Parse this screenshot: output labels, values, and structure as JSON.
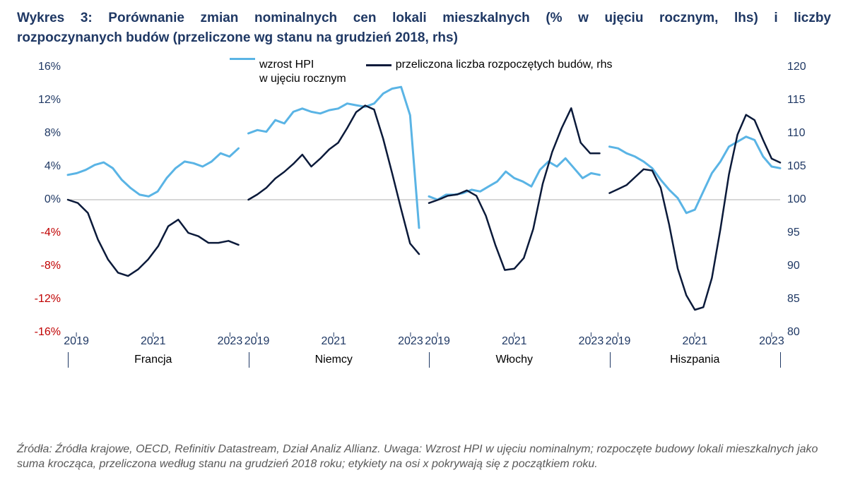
{
  "title_line1": "Wykres 3: Porównanie zmian nominalnych cen lokali mieszkalnych (% w ujęciu rocznym, lhs) i liczby",
  "title_line2": "rozpoczynanych budów (przeliczone wg stanu na grudzień 2018, rhs)",
  "legend": {
    "hpi_line1": "wzrost HPI",
    "hpi_line2": "w ujęciu rocznym",
    "starts": "przeliczona liczba rozpoczętych budów, rhs"
  },
  "colors": {
    "hpi": "#5ab4e5",
    "starts": "#0b1a3a",
    "axis_text": "#1f3864",
    "neg_text": "#c00000",
    "zero_line": "#bfbfbf",
    "sep": "#1f3864",
    "tick": "#1f3864"
  },
  "chart": {
    "type": "line-panels",
    "left_axis": {
      "min": -16,
      "max": 16,
      "step": 4,
      "suffix": "%",
      "labels": [
        "16%",
        "12%",
        "8%",
        "4%",
        "0%",
        "-4%",
        "-8%",
        "-12%",
        "-16%"
      ]
    },
    "right_axis": {
      "min": 80,
      "max": 120,
      "step": 5,
      "labels": [
        "120",
        "115",
        "110",
        "105",
        "100",
        "95",
        "90",
        "85",
        "80"
      ]
    },
    "line_width_hpi": 3,
    "line_width_starts": 2.5,
    "panels": [
      {
        "country": "Francja",
        "x_ticks": [
          "2019",
          "2021",
          "2023"
        ],
        "hpi": [
          3.0,
          3.2,
          3.6,
          4.2,
          4.5,
          3.8,
          2.4,
          1.4,
          0.6,
          0.4,
          1.0,
          2.6,
          3.8,
          4.6,
          4.4,
          4.0,
          4.6,
          5.6,
          5.2,
          6.2
        ],
        "starts": [
          100,
          99.5,
          98,
          94,
          91,
          89,
          88.5,
          89.5,
          91,
          93,
          96,
          97,
          95,
          94.5,
          93.5,
          93.5,
          93.8,
          93.2
        ]
      },
      {
        "country": "Niemcy",
        "x_ticks": [
          "2019",
          "2021",
          "2023"
        ],
        "hpi": [
          8.0,
          8.4,
          8.2,
          9.6,
          9.2,
          10.6,
          11.0,
          10.6,
          10.4,
          10.8,
          11.0,
          11.6,
          11.4,
          11.2,
          11.6,
          12.8,
          13.4,
          13.6,
          10.2,
          -3.4
        ],
        "starts": [
          100,
          100.8,
          101.8,
          103.2,
          104.2,
          105.4,
          106.8,
          105.0,
          106.2,
          107.6,
          108.6,
          110.8,
          113.2,
          114.2,
          113.6,
          109.2,
          104.0,
          98.6,
          93.4,
          91.8
        ]
      },
      {
        "country": "Włochy",
        "x_ticks": [
          "2019",
          "2021",
          "2023"
        ],
        "hpi": [
          0.4,
          0.0,
          0.6,
          0.6,
          0.8,
          1.2,
          1.0,
          1.6,
          2.2,
          3.4,
          2.6,
          2.2,
          1.6,
          3.6,
          4.6,
          4.0,
          5.0,
          3.8,
          2.6,
          3.2,
          3.0
        ],
        "starts": [
          99.5,
          100.0,
          100.6,
          100.8,
          101.4,
          100.6,
          97.6,
          93.2,
          89.4,
          89.6,
          91.2,
          95.6,
          102.4,
          107.2,
          110.8,
          113.8,
          108.6,
          107.0,
          107.0
        ]
      },
      {
        "country": "Hiszpania",
        "x_ticks": [
          "2019",
          "2021",
          "2023"
        ],
        "hpi": [
          6.4,
          6.2,
          5.6,
          5.2,
          4.6,
          3.8,
          2.4,
          1.2,
          0.2,
          -1.6,
          -1.2,
          1.0,
          3.2,
          4.6,
          6.4,
          7.0,
          7.6,
          7.2,
          5.2,
          4.0,
          3.8
        ],
        "starts": [
          101.0,
          101.6,
          102.2,
          103.4,
          104.6,
          104.4,
          101.8,
          96.2,
          89.6,
          85.6,
          83.4,
          83.8,
          88.2,
          95.6,
          103.8,
          109.8,
          112.8,
          112.0,
          109.0,
          106.2,
          105.6
        ]
      }
    ]
  },
  "xaxis_country_labels": [
    "Francja",
    "Niemcy",
    "Włochy",
    "Hiszpania"
  ],
  "source": "Źródła: Źródła krajowe, OECD, Refinitiv Datastream, Dział Analiz Allianz. Uwaga: Wzrost HPI w ujęciu nominalnym; rozpoczęte budowy lokali mieszkalnych jako suma krocząca, przeliczona według stanu na grudzień 2018 roku; etykiety na osi x pokrywają się z początkiem roku."
}
